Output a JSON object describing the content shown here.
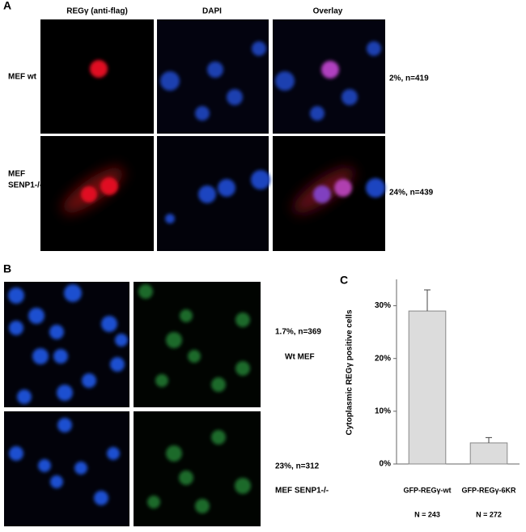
{
  "panel_a": {
    "label": "A",
    "columns": [
      "REGγ (anti-flag)",
      "DAPI",
      "Overlay"
    ],
    "rows": [
      {
        "label_lines": [
          "MEF wt"
        ],
        "result": "2%, n=419"
      },
      {
        "label_lines": [
          "MEF",
          "SENP1-/-"
        ],
        "result": "24%, n=439"
      }
    ]
  },
  "panel_b": {
    "label": "B",
    "rows": [
      {
        "result": "1.7%, n=369",
        "condition": "Wt MEF"
      },
      {
        "result": "23%, n=312",
        "condition": "MEF SENP1-/-"
      }
    ]
  },
  "chart_data": {
    "type": "bar",
    "panel_label": "C",
    "y_label": "Cytoplasmic REGγ positive cells",
    "categories": [
      "GFP-REGγ-wt",
      "GFP-REGγ-6KR"
    ],
    "sample_sizes": [
      "N = 243",
      "N = 272"
    ],
    "values": [
      29,
      4
    ],
    "errors": [
      4,
      1
    ],
    "color": "#dcdcdc",
    "ylim": [
      0,
      35
    ],
    "yticks": [
      {
        "value": 0,
        "label": "0%"
      },
      {
        "value": 10,
        "label": "10%"
      },
      {
        "value": 20,
        "label": "20%"
      },
      {
        "value": 30,
        "label": "30%"
      }
    ]
  }
}
